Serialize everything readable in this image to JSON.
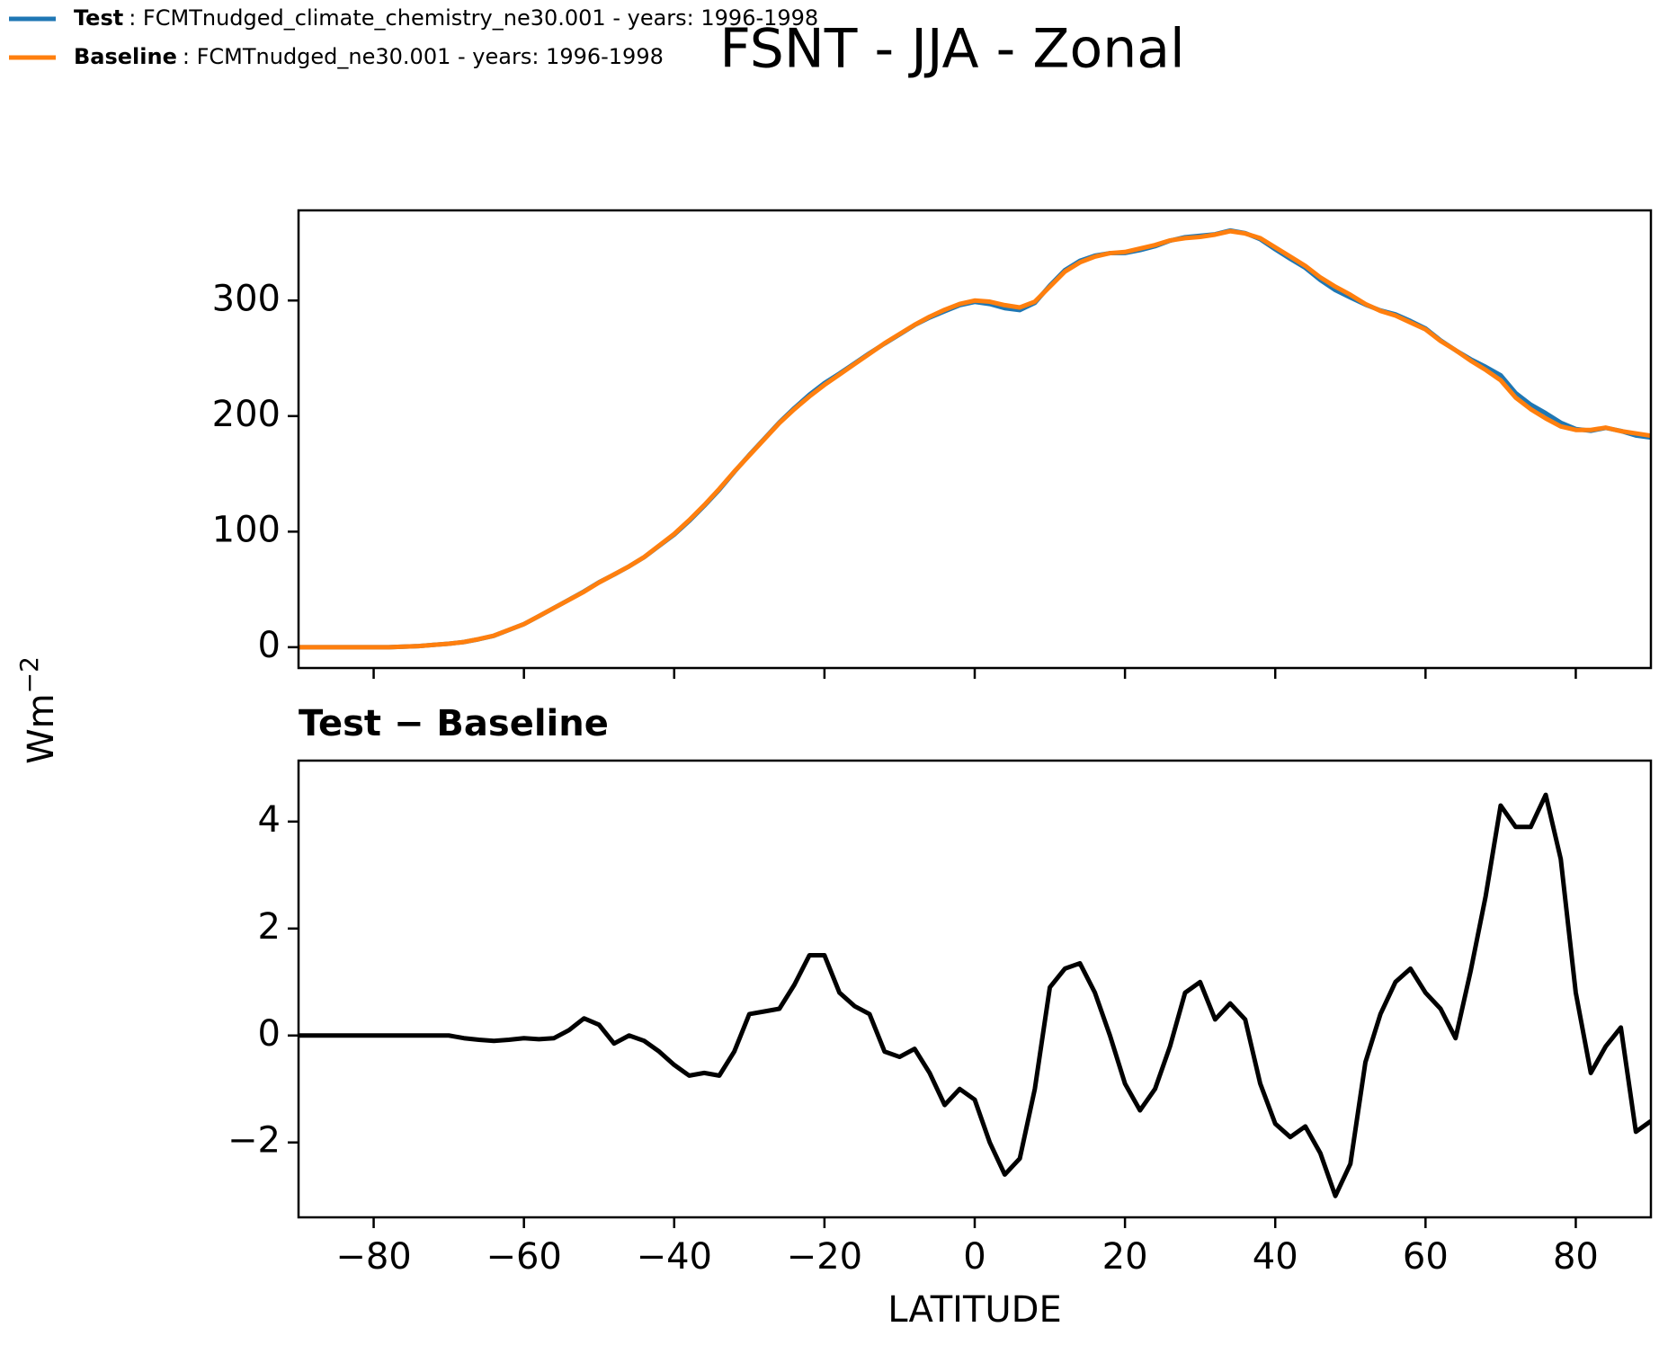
{
  "title": "FSNT - JJA - Zonal",
  "ylabel": "Wm",
  "ylabel_exponent": "−2",
  "chart_data": [
    {
      "type": "line",
      "x": [
        -90,
        -88,
        -86,
        -84,
        -82,
        -80,
        -78,
        -76,
        -74,
        -72,
        -70,
        -68,
        -66,
        -64,
        -62,
        -60,
        -58,
        -56,
        -54,
        -52,
        -50,
        -48,
        -46,
        -44,
        -42,
        -40,
        -38,
        -36,
        -34,
        -32,
        -30,
        -28,
        -26,
        -24,
        -22,
        -20,
        -18,
        -16,
        -14,
        -12,
        -10,
        -8,
        -6,
        -4,
        -2,
        0,
        2,
        4,
        6,
        8,
        10,
        12,
        14,
        16,
        18,
        20,
        22,
        24,
        26,
        28,
        30,
        32,
        34,
        36,
        38,
        40,
        42,
        44,
        46,
        48,
        50,
        52,
        54,
        56,
        58,
        60,
        62,
        64,
        66,
        68,
        70,
        72,
        74,
        76,
        78,
        80,
        82,
        84,
        86,
        88,
        90
      ],
      "series": [
        {
          "name": "Test",
          "description": ": FCMTnudged_climate_chemistry_ne30.001 - years: 1996-1998",
          "color": "#1f77b4",
          "values": [
            0,
            0,
            0,
            0,
            0,
            0,
            0,
            0.5,
            1,
            2,
            3,
            4.45,
            6.9,
            9.9,
            14.9,
            19.95,
            26.9,
            33.95,
            41.1,
            48.3,
            56.2,
            62.85,
            70,
            77.9,
            87.7,
            97.45,
            109.25,
            122.3,
            136.25,
            151.7,
            166.4,
            180.45,
            194.5,
            206.95,
            218.5,
            228.5,
            236.8,
            245.55,
            254.4,
            262.7,
            270.6,
            278.75,
            285.3,
            290.7,
            296,
            298.8,
            297,
            293.4,
            291.7,
            298,
            312.9,
            326.25,
            334.35,
            338.8,
            341,
            341.1,
            343.6,
            347,
            351.8,
            354.8,
            356,
            357.3,
            360.6,
            358.3,
            353.1,
            344.35,
            336.1,
            328.3,
            317.8,
            309,
            302.6,
            296.5,
            291.4,
            288,
            282.25,
            275.8,
            265.5,
            256.95,
            249.2,
            242.6,
            235.3,
            219.9,
            209.9,
            202.5,
            194.3,
            188.8,
            187.3,
            189.8,
            187.15,
            183.2,
            181.4
          ]
        },
        {
          "name": "Baseline",
          "description": ": FCMTnudged_ne30.001 - years: 1996-1998",
          "color": "#ff7f0e",
          "values": [
            0,
            0,
            0,
            0,
            0,
            0,
            0,
            0.5,
            1,
            2,
            3,
            4.5,
            7,
            10,
            15,
            20,
            27,
            34,
            41,
            48,
            56,
            63,
            70,
            78,
            88,
            98,
            110,
            123,
            137,
            152,
            166,
            180,
            194,
            206,
            217,
            227,
            236,
            245,
            254,
            263,
            271,
            279,
            286,
            292,
            297,
            300,
            299,
            296,
            294,
            299,
            312,
            325,
            333,
            338,
            341,
            342,
            345,
            348,
            352,
            354,
            355,
            357,
            360,
            358,
            354,
            346,
            338,
            330,
            320,
            312,
            305,
            297,
            291,
            287,
            281,
            275,
            265,
            257,
            248,
            240,
            231,
            216,
            206,
            198,
            191,
            188,
            188,
            190,
            187,
            185,
            183
          ]
        }
      ],
      "xlim": [
        -90,
        90
      ],
      "xticks": [
        -80,
        -60,
        -40,
        -20,
        0,
        20,
        40,
        60,
        80
      ],
      "ylim": [
        -18,
        378
      ],
      "yticks": [
        0,
        100,
        200,
        300
      ]
    },
    {
      "type": "line",
      "title": "Test − Baseline",
      "xlabel": "LATITUDE",
      "x": [
        -90,
        -88,
        -86,
        -84,
        -82,
        -80,
        -78,
        -76,
        -74,
        -72,
        -70,
        -68,
        -66,
        -64,
        -62,
        -60,
        -58,
        -56,
        -54,
        -52,
        -50,
        -48,
        -46,
        -44,
        -42,
        -40,
        -38,
        -36,
        -34,
        -32,
        -30,
        -28,
        -26,
        -24,
        -22,
        -20,
        -18,
        -16,
        -14,
        -12,
        -10,
        -8,
        -6,
        -4,
        -2,
        0,
        2,
        4,
        6,
        8,
        10,
        12,
        14,
        16,
        18,
        20,
        22,
        24,
        26,
        28,
        30,
        32,
        34,
        36,
        38,
        40,
        42,
        44,
        46,
        48,
        50,
        52,
        54,
        56,
        58,
        60,
        62,
        64,
        66,
        68,
        70,
        72,
        74,
        76,
        78,
        80,
        82,
        84,
        86,
        88,
        90
      ],
      "series": [
        {
          "color": "#000000",
          "values": [
            0,
            0,
            0,
            0,
            0,
            0,
            0,
            0,
            0,
            0,
            0,
            -0.05,
            -0.08,
            -0.1,
            -0.08,
            -0.05,
            -0.07,
            -0.05,
            0.1,
            0.32,
            0.2,
            -0.15,
            0,
            -0.1,
            -0.3,
            -0.55,
            -0.75,
            -0.7,
            -0.75,
            -0.3,
            0.4,
            0.45,
            0.5,
            0.95,
            1.5,
            1.5,
            0.8,
            0.55,
            0.4,
            -0.3,
            -0.4,
            -0.25,
            -0.7,
            -1.3,
            -1.0,
            -1.2,
            -2.0,
            -2.6,
            -2.3,
            -1.0,
            0.9,
            1.25,
            1.35,
            0.8,
            0,
            -0.9,
            -1.4,
            -1.0,
            -0.2,
            0.8,
            1.0,
            0.3,
            0.6,
            0.3,
            -0.9,
            -1.65,
            -1.9,
            -1.7,
            -2.2,
            -3.0,
            -2.4,
            -0.5,
            0.4,
            1.0,
            1.25,
            0.8,
            0.5,
            -0.05,
            1.2,
            2.6,
            4.3,
            3.9,
            3.9,
            4.5,
            3.3,
            0.8,
            -0.7,
            -0.2,
            0.15,
            -1.8,
            -1.6
          ]
        }
      ],
      "xlim": [
        -90,
        90
      ],
      "xticks": [
        {
          "value": -80,
          "label": "−80"
        },
        {
          "value": -60,
          "label": "−60"
        },
        {
          "value": -40,
          "label": "−40"
        },
        {
          "value": -20,
          "label": "−20"
        },
        0,
        20,
        40,
        60,
        80
      ],
      "ylim": [
        -3.4,
        5.14
      ],
      "yticks": [
        {
          "value": -2,
          "label": "−2"
        },
        0,
        2,
        4
      ]
    }
  ]
}
